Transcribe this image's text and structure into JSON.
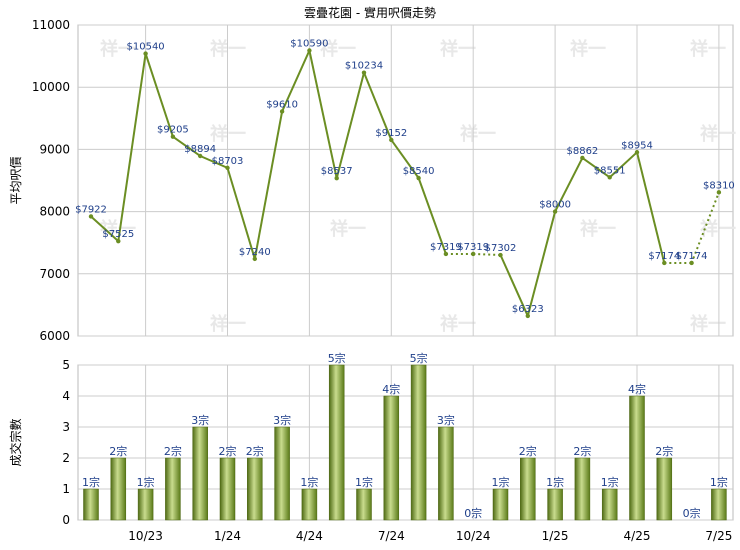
{
  "chart_data": [
    {
      "type": "line",
      "title": "雲疊花園 - 實用呎價走勢",
      "ylabel": "平均呎價",
      "ylim": [
        6000,
        11000
      ],
      "yticks": [
        6000,
        7000,
        8000,
        9000,
        10000,
        11000
      ],
      "xticks": [
        "10/23",
        "1/24",
        "4/24",
        "7/24",
        "10/24",
        "1/25",
        "4/25",
        "7/25"
      ],
      "series": [
        {
          "values": [
            7922,
            7525,
            10540,
            9205,
            8894,
            8703,
            7240,
            9610,
            10590,
            8537,
            10234,
            9152,
            8540,
            7319,
            7319,
            7302,
            6323,
            8000,
            8862,
            8551,
            8954,
            7174,
            7174,
            8310
          ],
          "labels": [
            "$7922",
            "$7525",
            "$10540",
            "$9205",
            "$8894",
            "$8703",
            "$7240",
            "$9610",
            "$10590",
            "$8537",
            "$10234",
            "$9152",
            "$8540",
            "$7319",
            "$7319",
            "$7302",
            "$6323",
            "$8000",
            "$8862",
            "$8551",
            "$8954",
            "$7174",
            "$7174",
            "$8310"
          ],
          "interpolated": [
            false,
            false,
            false,
            false,
            false,
            false,
            false,
            false,
            false,
            false,
            false,
            false,
            false,
            false,
            true,
            false,
            false,
            false,
            false,
            false,
            false,
            false,
            true,
            false
          ],
          "color": "#6b8e23"
        }
      ],
      "grid": true,
      "watermark": "祥一"
    },
    {
      "type": "bar",
      "ylabel": "成交宗數",
      "ylim": [
        0,
        5
      ],
      "yticks": [
        0,
        1,
        2,
        3,
        4,
        5
      ],
      "xticks": [
        "10/23",
        "1/24",
        "4/24",
        "7/24",
        "10/24",
        "1/25",
        "4/25",
        "7/25"
      ],
      "series": [
        {
          "values": [
            1,
            2,
            1,
            2,
            3,
            2,
            2,
            3,
            1,
            5,
            1,
            4,
            5,
            3,
            0,
            1,
            2,
            1,
            2,
            1,
            4,
            2,
            0,
            1
          ],
          "labels": [
            "1宗",
            "2宗",
            "1宗",
            "2宗",
            "3宗",
            "2宗",
            "2宗",
            "3宗",
            "1宗",
            "5宗",
            "1宗",
            "4宗",
            "5宗",
            "3宗",
            "0宗",
            "1宗",
            "2宗",
            "1宗",
            "2宗",
            "1宗",
            "4宗",
            "2宗",
            "0宗",
            "1宗"
          ],
          "color": "#6b8e23"
        }
      ],
      "grid": true
    }
  ]
}
